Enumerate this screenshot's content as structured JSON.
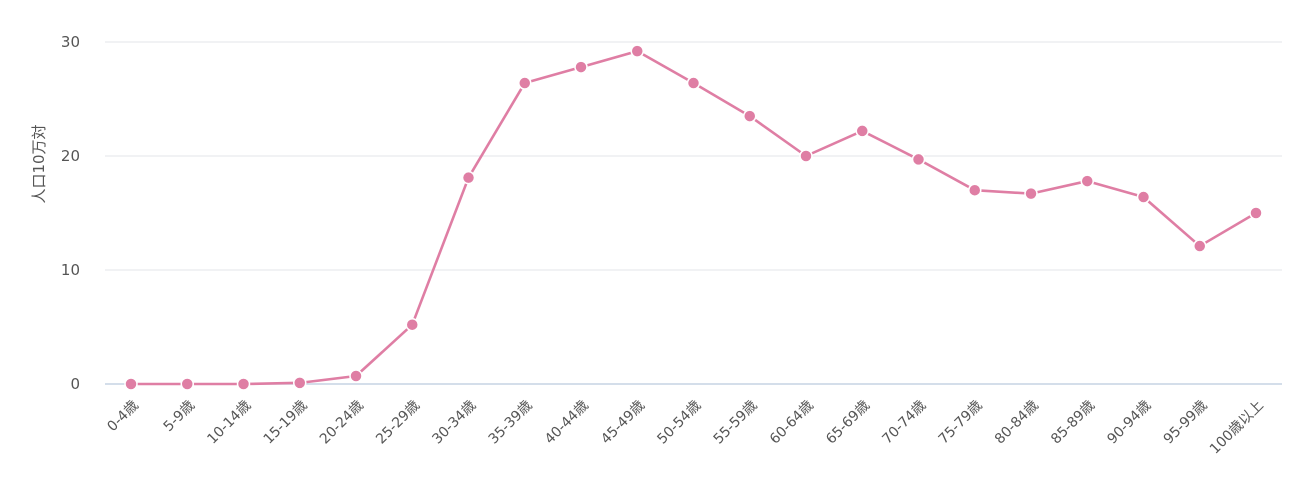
{
  "chart_data": {
    "type": "line",
    "ylabel": "人口10万対",
    "xlabel": "",
    "ylim": [
      0,
      30
    ],
    "yticks": [
      0,
      10,
      20,
      30
    ],
    "grid": true,
    "categories": [
      "0-4歳",
      "5-9歳",
      "10-14歳",
      "15-19歳",
      "20-24歳",
      "25-29歳",
      "30-34歳",
      "35-39歳",
      "40-44歳",
      "45-49歳",
      "50-54歳",
      "55-59歳",
      "60-64歳",
      "65-69歳",
      "70-74歳",
      "75-79歳",
      "80-84歳",
      "85-89歳",
      "90-94歳",
      "95-99歳",
      "100歳以上"
    ],
    "series": [
      {
        "color": "#df7ea4",
        "values": [
          0.0,
          0.0,
          0.0,
          0.1,
          0.7,
          5.2,
          18.1,
          26.4,
          27.8,
          29.2,
          26.4,
          23.5,
          20.0,
          22.2,
          19.7,
          17.0,
          16.7,
          17.8,
          16.4,
          12.1,
          15.0
        ]
      }
    ]
  }
}
